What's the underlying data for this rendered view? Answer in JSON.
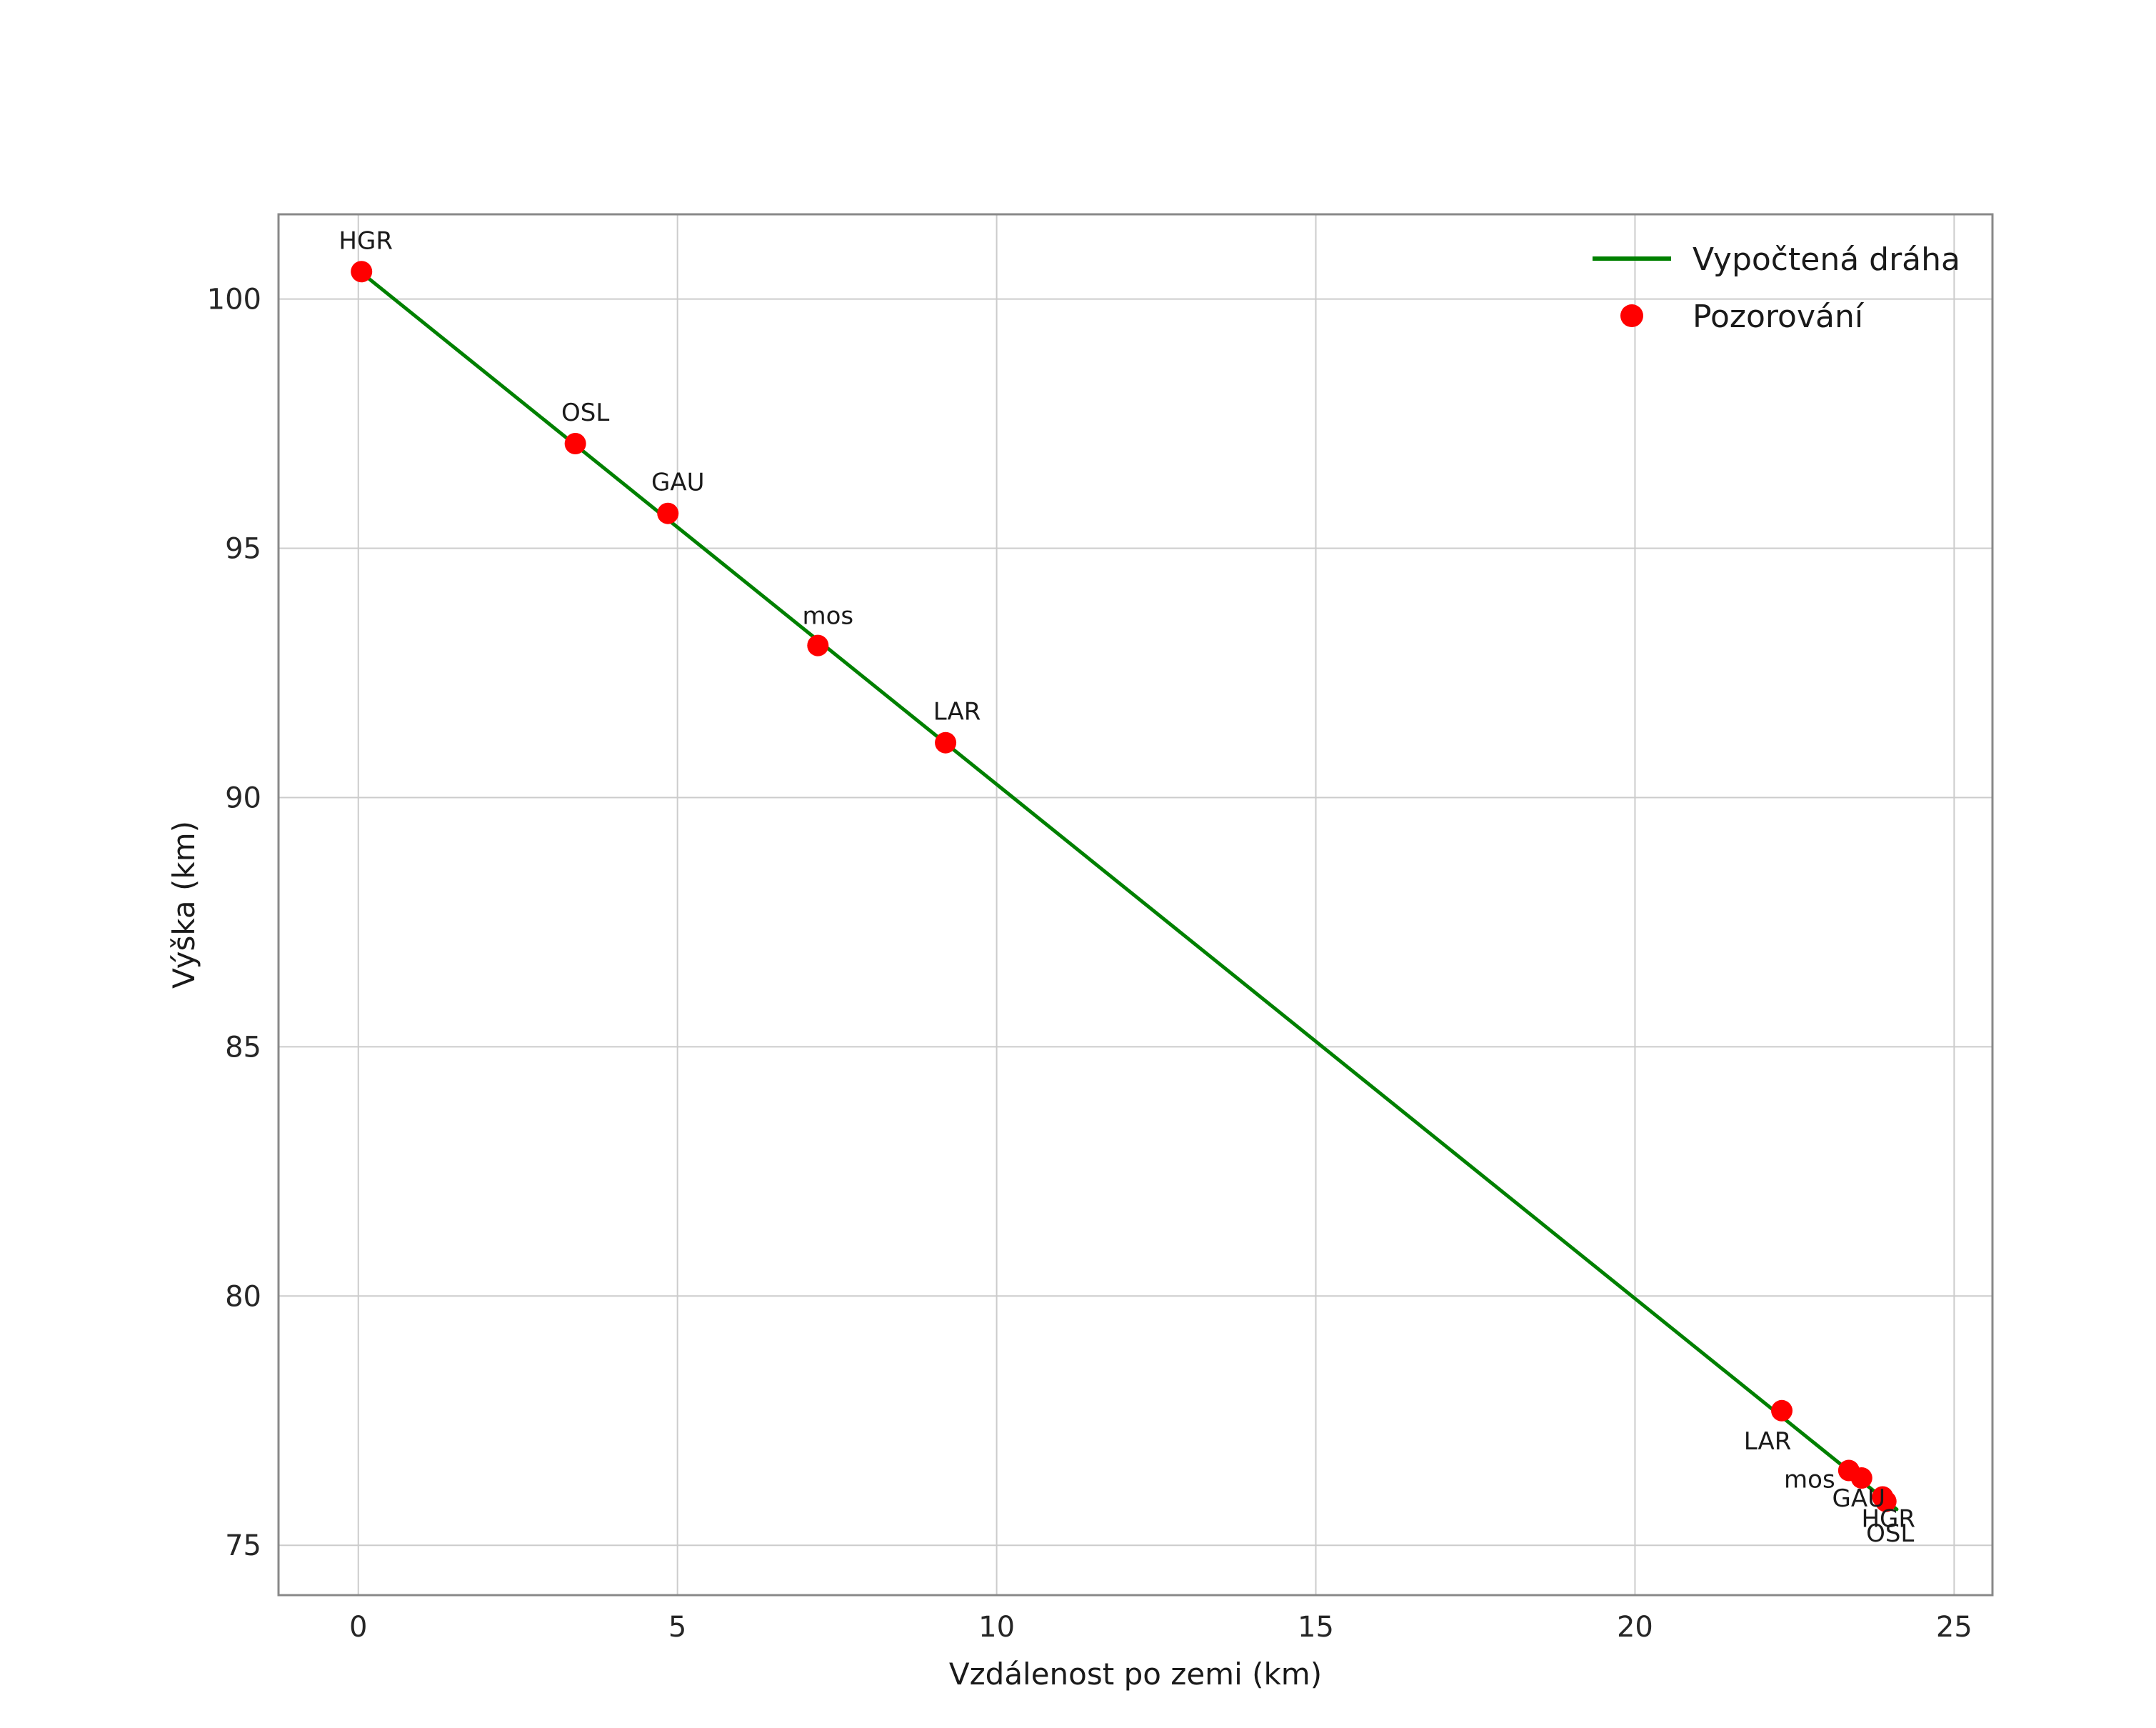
{
  "figure": {
    "background": "#ffffff"
  },
  "chart_data": {
    "type": "scatter",
    "title": "",
    "xlabel": "Vzdálenost po zemi (km)",
    "ylabel": "Výška (km)",
    "xlim": [
      -1.25,
      25.6
    ],
    "ylim": [
      74.0,
      101.7
    ],
    "xticks": [
      0,
      5,
      10,
      15,
      20,
      25
    ],
    "yticks": [
      75,
      80,
      85,
      90,
      95,
      100
    ],
    "grid": true,
    "legend_position": "upper-right",
    "colors": {
      "line": "#008000",
      "marker": "#ff0000",
      "grid": "#cccccc",
      "frame": "#888888",
      "text": "#1a1a1a",
      "tick_text": "#262626"
    },
    "series": [
      {
        "name": "Vypočtená dráha",
        "kind": "line",
        "color": "#008000",
        "points": [
          [
            0.0,
            100.58
          ],
          [
            24.1,
            75.72
          ]
        ]
      },
      {
        "name": "Pozorování",
        "kind": "scatter",
        "color": "#ff0000",
        "points": [
          {
            "x": 0.05,
            "y": 100.55,
            "label": "HGR",
            "label_offset": [
              6,
              -32
            ]
          },
          {
            "x": 3.4,
            "y": 97.1,
            "label": "OSL",
            "label_offset": [
              14,
              -32
            ]
          },
          {
            "x": 4.85,
            "y": 95.7,
            "label": "GAU",
            "label_offset": [
              14,
              -32
            ]
          },
          {
            "x": 7.2,
            "y": 93.05,
            "label": "mos",
            "label_offset": [
              14,
              -30
            ]
          },
          {
            "x": 9.2,
            "y": 91.1,
            "label": "LAR",
            "label_offset": [
              16,
              -32
            ]
          },
          {
            "x": 22.3,
            "y": 77.7,
            "label": "LAR",
            "label_offset": [
              -20,
              54
            ]
          },
          {
            "x": 23.35,
            "y": 76.5,
            "label": "mos",
            "label_offset": [
              -55,
              24
            ]
          },
          {
            "x": 23.55,
            "y": 76.35,
            "label": "GAU",
            "label_offset": [
              -4,
              40
            ]
          },
          {
            "x": 23.88,
            "y": 75.97,
            "label": "HGR",
            "label_offset": [
              8,
              42
            ]
          },
          {
            "x": 23.93,
            "y": 75.88,
            "label": "OSL",
            "label_offset": [
              6,
              56
            ]
          }
        ]
      }
    ],
    "legend": [
      {
        "label": "Vypočtená dráha",
        "kind": "line",
        "color": "#008000"
      },
      {
        "label": "Pozorování",
        "kind": "marker",
        "color": "#ff0000"
      }
    ]
  }
}
